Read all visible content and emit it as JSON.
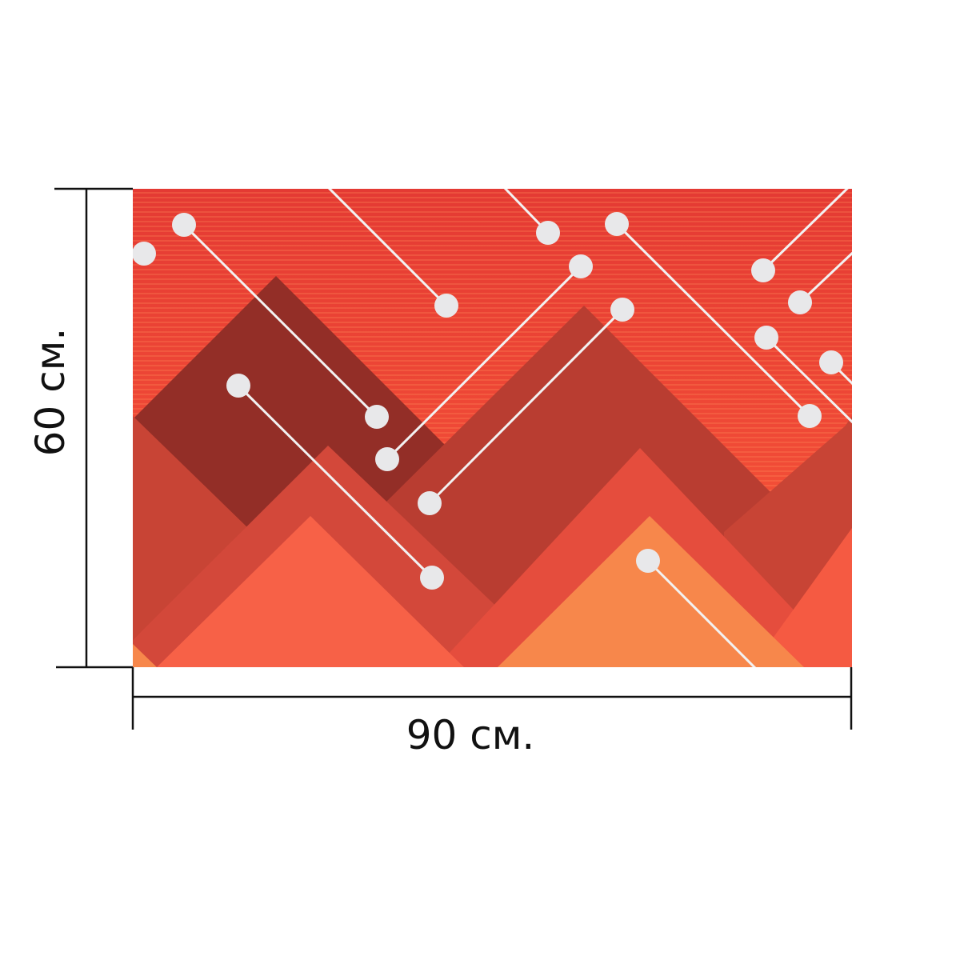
{
  "product": {
    "type": "printed canvas with geometric mountain pattern",
    "width_label": "90 см.",
    "height_label": "60 см."
  },
  "colors": {
    "sky_top": "#e43a33",
    "sky_bottom": "#fb5e3a",
    "stripe": "#ff8a5a",
    "dark_maroon": "#932e27",
    "brick": "#b93d31",
    "red": "#c84435",
    "coral": "#e54d3d",
    "salmon": "#f76147",
    "orange": "#f7874b",
    "dot": "#e8e8ea",
    "line": "#f2f2f2",
    "dimension_line": "#111111",
    "background": "#ffffff"
  }
}
